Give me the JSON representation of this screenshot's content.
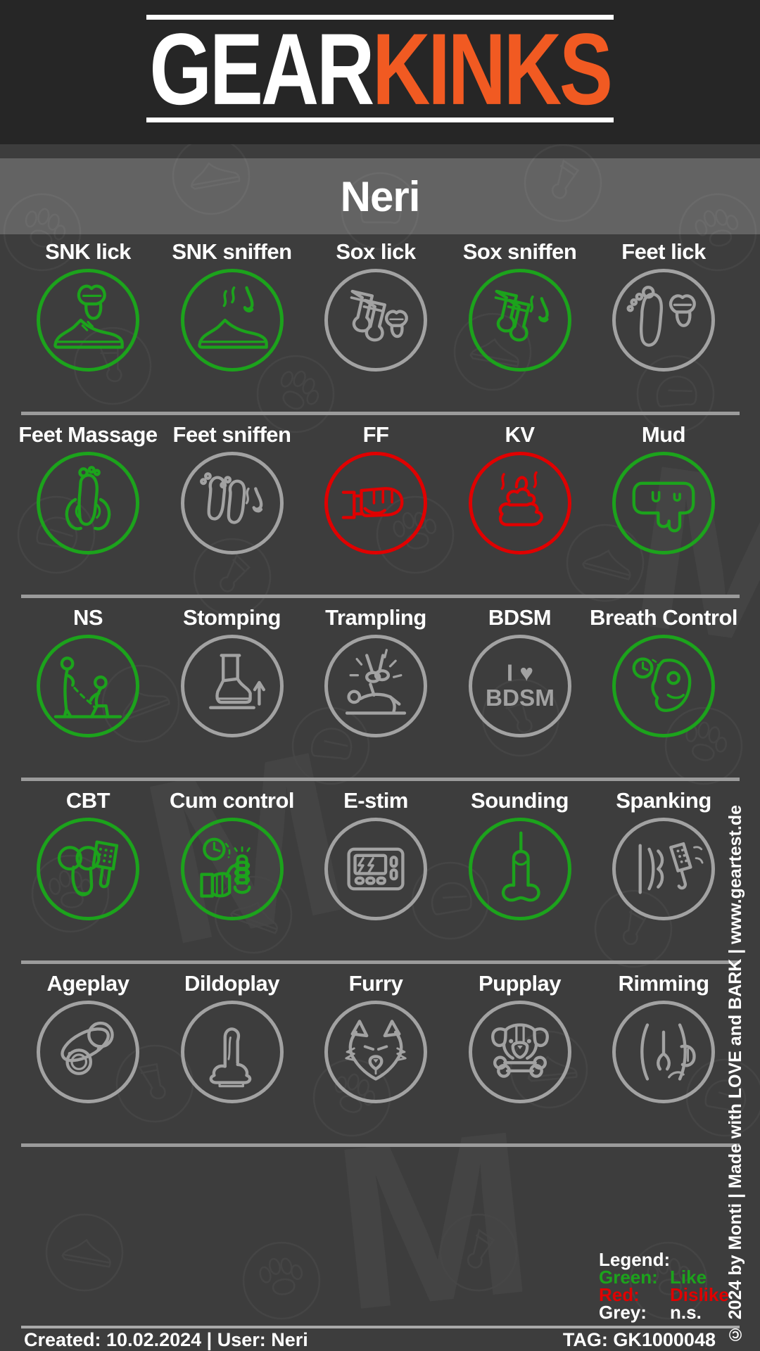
{
  "header": {
    "logo_part1": "GEAR",
    "logo_part2": "KINKS"
  },
  "banner": {
    "username": "Neri"
  },
  "grid": {
    "cells": [
      {
        "label": "SNK lick",
        "status": "like",
        "icon": "sneaker-tongue-icon"
      },
      {
        "label": "SNK sniffen",
        "status": "like",
        "icon": "sneaker-nose-icon"
      },
      {
        "label": "Sox lick",
        "status": "ns",
        "icon": "socks-tongue-icon"
      },
      {
        "label": "Sox sniffen",
        "status": "like",
        "icon": "socks-nose-icon"
      },
      {
        "label": "Feet lick",
        "status": "ns",
        "icon": "foot-tongue-icon"
      },
      {
        "label": "Feet Massage",
        "status": "like",
        "icon": "foot-massage-icon"
      },
      {
        "label": "Feet sniffen",
        "status": "ns",
        "icon": "feet-nose-icon"
      },
      {
        "label": "FF",
        "status": "dislike",
        "icon": "fist-icon"
      },
      {
        "label": "KV",
        "status": "dislike",
        "icon": "poop-icon"
      },
      {
        "label": "Mud",
        "status": "like",
        "icon": "mud-drip-icon"
      },
      {
        "label": "NS",
        "status": "like",
        "icon": "watersports-icon"
      },
      {
        "label": "Stomping",
        "status": "ns",
        "icon": "boot-stomp-icon"
      },
      {
        "label": "Trampling",
        "status": "ns",
        "icon": "trample-icon"
      },
      {
        "label": "BDSM",
        "status": "ns",
        "icon": "i-love-bdsm-icon"
      },
      {
        "label": "Breath Control",
        "status": "like",
        "icon": "gimp-mask-clock-icon"
      },
      {
        "label": "CBT",
        "status": "like",
        "icon": "cbt-paddle-icon"
      },
      {
        "label": "Cum control",
        "status": "like",
        "icon": "clock-hand-grip-icon"
      },
      {
        "label": "E-stim",
        "status": "ns",
        "icon": "estim-box-icon"
      },
      {
        "label": "Sounding",
        "status": "like",
        "icon": "sounding-rod-icon"
      },
      {
        "label": "Spanking",
        "status": "ns",
        "icon": "spanking-paddle-icon"
      },
      {
        "label": "Ageplay",
        "status": "ns",
        "icon": "pacifier-icon"
      },
      {
        "label": "Dildoplay",
        "status": "ns",
        "icon": "dildo-icon"
      },
      {
        "label": "Furry",
        "status": "ns",
        "icon": "wolf-head-icon"
      },
      {
        "label": "Pupplay",
        "status": "ns",
        "icon": "pup-bone-icon"
      },
      {
        "label": "Rimming",
        "status": "ns",
        "icon": "butt-tongue-icon"
      }
    ]
  },
  "icon_texts": {
    "i_love": "I ♥",
    "bdsm": "BDSM"
  },
  "legend": {
    "title": "Legend:",
    "entries": [
      {
        "name": "Green:",
        "value": "Like",
        "status": "like"
      },
      {
        "name": "Red:",
        "value": "Dislike",
        "status": "dislike"
      },
      {
        "name": "Grey:",
        "value": "n.s.",
        "status": "neutral"
      }
    ]
  },
  "footer": {
    "created": "Created: 10.02.2024 | User: Neri",
    "tag": "TAG: GK1000048"
  },
  "sidebar": {
    "copyright": "© 2024 by Monti | Made with LOVE and BARK | www.geartest.de"
  },
  "colors": {
    "like": "#1CA31C",
    "dislike": "#E00000",
    "ns": "#A2A2A2",
    "accent_orange": "#F15A22",
    "background": "#3D3D3D",
    "header_background": "#262626"
  }
}
